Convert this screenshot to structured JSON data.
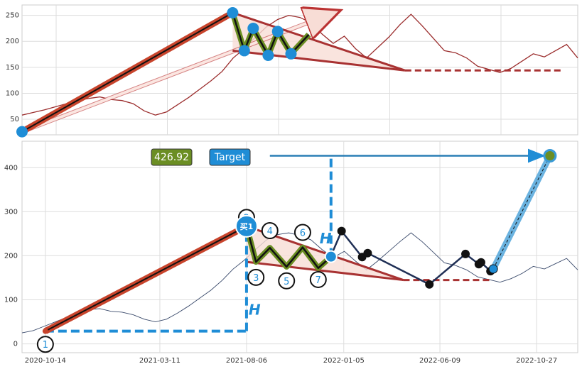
{
  "chart_data": [
    {
      "id": "top",
      "type": "line",
      "ylim": [
        20,
        270
      ],
      "yticks": [
        50,
        100,
        150,
        200,
        250
      ],
      "xlim": [
        0,
        100
      ],
      "grid": true,
      "series": [
        {
          "x": [
            0,
            2,
            4,
            6,
            8,
            10,
            12,
            14,
            16,
            18,
            20,
            22,
            24,
            26,
            28,
            30,
            32,
            34,
            36,
            38,
            40,
            42,
            44,
            46,
            48,
            50,
            52,
            54,
            56,
            58,
            60,
            62,
            64,
            66,
            68,
            70,
            72,
            74,
            76,
            78,
            80,
            82,
            84,
            86,
            88,
            90,
            92,
            94,
            96,
            98,
            100
          ],
          "y": [
            58,
            63,
            68,
            74,
            80,
            86,
            90,
            93,
            88,
            86,
            80,
            66,
            58,
            64,
            78,
            92,
            108,
            124,
            142,
            168,
            186,
            208,
            228,
            242,
            250,
            246,
            236,
            214,
            196,
            210,
            186,
            168,
            188,
            208,
            232,
            252,
            230,
            206,
            182,
            178,
            168,
            152,
            146,
            140,
            148,
            162,
            176,
            170,
            182,
            194,
            168
          ]
        }
      ],
      "pattern": {
        "points": [
          [
            0,
            26
          ],
          [
            37.9,
            255
          ],
          [
            40,
            182
          ],
          [
            41.6,
            225
          ],
          [
            44.3,
            173
          ],
          [
            46,
            219
          ],
          [
            48.4,
            176
          ],
          [
            51.6,
            213
          ]
        ],
        "channel_upper": [
          [
            37.9,
            255
          ],
          [
            68.9,
            144
          ]
        ],
        "channel_lower": [
          [
            37.9,
            182
          ],
          [
            68.9,
            144
          ]
        ],
        "support_line": {
          "x": [
            68.9,
            97
          ],
          "y": 144
        },
        "projection_arrow": [
          [
            0,
            26
          ],
          [
            56.9,
            258
          ]
        ]
      }
    },
    {
      "id": "bottom",
      "type": "line",
      "ylim": [
        -20,
        460
      ],
      "yticks": [
        0,
        100,
        200,
        300,
        400
      ],
      "xlim": [
        0,
        100
      ],
      "grid": true,
      "xtick_labels": [
        "2020-10-14",
        "2021-03-11",
        "2021-08-06",
        "2022-01-05",
        "2022-06-09",
        "2022-10-27"
      ],
      "xtick_positions": [
        4.2,
        24.8,
        40.4,
        57.9,
        75.2,
        92.6
      ],
      "series": [
        {
          "x": [
            0,
            2,
            4,
            6,
            8,
            10,
            12,
            14,
            16,
            18,
            20,
            22,
            24,
            26,
            28,
            30,
            32,
            34,
            36,
            38,
            40,
            42,
            44,
            46,
            48,
            50,
            52,
            54,
            56,
            58,
            60,
            62,
            64,
            66,
            68,
            70,
            72,
            74,
            76,
            78,
            80,
            82,
            84,
            86,
            88,
            90,
            92,
            94,
            96,
            98,
            100
          ],
          "y": [
            25,
            30,
            40,
            50,
            60,
            70,
            78,
            80,
            74,
            72,
            66,
            56,
            50,
            56,
            70,
            86,
            104,
            122,
            144,
            170,
            190,
            214,
            236,
            248,
            252,
            246,
            236,
            214,
            196,
            210,
            188,
            168,
            188,
            210,
            232,
            252,
            232,
            208,
            184,
            178,
            168,
            152,
            146,
            140,
            148,
            160,
            176,
            170,
            182,
            194,
            168
          ]
        }
      ],
      "pattern": {
        "points": [
          [
            4.2,
            29
          ],
          [
            40.4,
            267
          ],
          [
            42.1,
            186
          ],
          [
            44.6,
            218
          ],
          [
            47.6,
            175
          ],
          [
            50.5,
            219
          ],
          [
            53.3,
            172
          ],
          [
            55.6,
            198
          ]
        ],
        "channel_upper": [
          [
            40.4,
            267
          ],
          [
            68.6,
            145
          ]
        ],
        "channel_lower": [
          [
            40.4,
            186
          ],
          [
            68.6,
            145
          ]
        ],
        "support_line": {
          "x": [
            68.6,
            84.3
          ],
          "y": 145
        },
        "markers": [
          {
            "label": "1",
            "x": 4.2,
            "y": -1
          },
          {
            "label": "2",
            "x": 40.4,
            "y": 287
          },
          {
            "label": "3",
            "x": 42.1,
            "y": 151
          },
          {
            "label": "4",
            "x": 44.6,
            "y": 257
          },
          {
            "label": "5",
            "x": 47.6,
            "y": 143
          },
          {
            "label": "6",
            "x": 50.5,
            "y": 253
          },
          {
            "label": "7",
            "x": 53.3,
            "y": 146
          }
        ],
        "black_path": [
          [
            55.6,
            200
          ],
          [
            57.5,
            256
          ],
          [
            61.2,
            197
          ],
          [
            62.2,
            206
          ],
          [
            73.3,
            135
          ],
          [
            79.8,
            204
          ],
          [
            82.2,
            181
          ],
          [
            82.6,
            185
          ],
          [
            84.3,
            165
          ],
          [
            84.8,
            170
          ]
        ],
        "target_line": {
          "x1": 84.8,
          "y1": 170,
          "x2": 95,
          "y2": 427
        },
        "target_arrow": {
          "x1": 44.6,
          "x2": 93.9,
          "y": 427
        },
        "h_vertical_1": {
          "x": 40.4,
          "y1": 29,
          "y2": 267
        },
        "h_horizontal_1": {
          "x1": 4.2,
          "x2": 40.4,
          "y": 29
        },
        "h_vertical_2": {
          "x": 55.6,
          "y1": 198,
          "y2": 427
        }
      },
      "labels": {
        "value_box": "426.92",
        "target_box": "Target",
        "buy_label": "买1",
        "h_label": "H"
      }
    }
  ]
}
